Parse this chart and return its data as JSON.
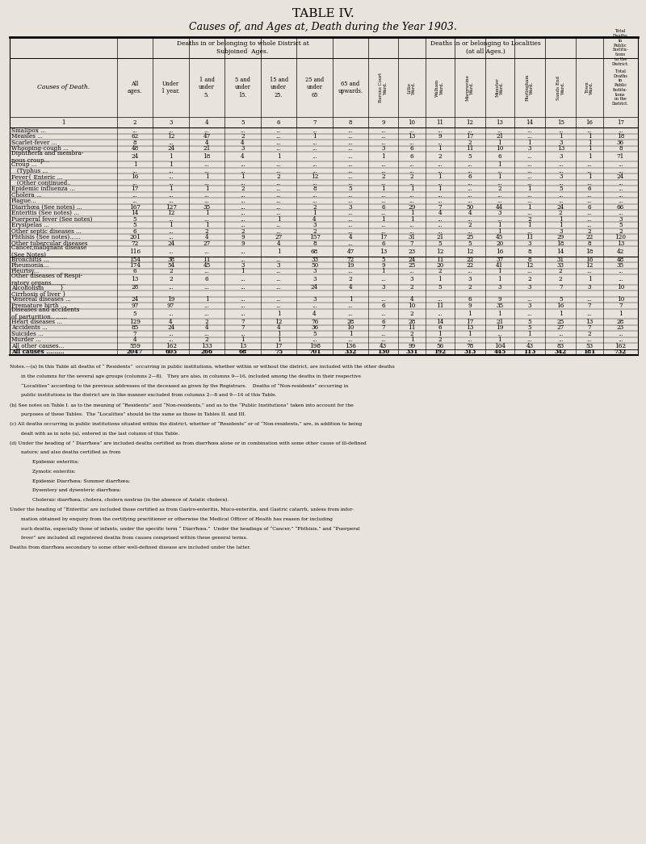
{
  "title": "TABLE IV.",
  "subtitle": "Causes of, and Ages at, Death during the Year 1903.",
  "bg_color": "#e8e4dc",
  "rows": [
    [
      "Smallpox ...",
      "...",
      "...",
      "...",
      "...",
      "...",
      "...",
      "...",
      "...",
      "...",
      "...",
      "...",
      "...",
      "...",
      "...",
      "...",
      "..."
    ],
    [
      "Measles ...",
      "62",
      "12",
      "47",
      "2",
      "...",
      "1",
      "...",
      "...",
      "13",
      "9",
      "17",
      "21",
      "...",
      "1",
      "1",
      "18"
    ],
    [
      "Scarlet-fever ...",
      "8",
      "...",
      "4",
      "4",
      "...",
      "...",
      "...",
      "...",
      "...",
      "...",
      "2",
      "1",
      "1",
      "3",
      "1",
      "36"
    ],
    [
      "Whooping-cough ...",
      "48",
      "24",
      "21",
      "3",
      "...",
      "...",
      "...",
      "3",
      "6",
      "1",
      "11",
      "10",
      "3",
      "13",
      "1",
      "8"
    ],
    [
      "Diphtheria and membra-\nnous croup...",
      "24",
      "1",
      "18",
      "4",
      "1",
      "...",
      "...",
      "1",
      "6",
      "2",
      "5",
      "6",
      "...",
      "3",
      "1",
      "71"
    ],
    [
      "Croup ...",
      "1",
      "1",
      "...",
      "...",
      "...",
      "...",
      "...",
      "...",
      "...",
      "...",
      "...",
      "1",
      "...",
      "...",
      "...",
      "..."
    ],
    [
      "   (Typhus ...",
      "...",
      "...",
      "...",
      "...",
      "...",
      "...",
      "...",
      "...",
      "...",
      "...",
      "...",
      "...",
      "...",
      "...",
      "...",
      "..."
    ],
    [
      "Fever{ Enteric ...",
      "16",
      "...",
      "1",
      "1",
      "2",
      "12",
      "...",
      "2",
      "2",
      "1",
      "6",
      "1",
      "...",
      "3",
      "1",
      "24"
    ],
    [
      "   (Other continued..",
      "...",
      "...",
      "...",
      "...",
      "...",
      "...",
      "...",
      "...",
      "...",
      "...",
      "...",
      "...",
      "...",
      "...",
      "...",
      "..."
    ],
    [
      "Epidemic influenza ...",
      "17",
      "1",
      "1",
      "2",
      "...",
      "8",
      "5",
      "1",
      "1",
      "1",
      "...",
      "2",
      "1",
      "5",
      "6",
      "..."
    ],
    [
      "Cholera ...",
      "...",
      "...",
      "...",
      "...",
      "...",
      "...",
      "...",
      "...",
      "...",
      "...",
      "...",
      "...",
      "...",
      "...",
      "...",
      "..."
    ],
    [
      "Plague...",
      "...",
      "...",
      "...",
      "...",
      "...",
      "...",
      "...",
      "...",
      "...",
      "...",
      "...",
      "...",
      "...",
      "...",
      "...",
      "..."
    ],
    [
      "Diarrhœa (See notes) ...",
      "167",
      "127",
      "35",
      "...",
      "...",
      "2",
      "3",
      "6",
      "29",
      "7",
      "50",
      "44",
      "1",
      "24",
      "6",
      "66"
    ],
    [
      "Enteritis (See notes) ...",
      "14",
      "12",
      "1",
      "...",
      "...",
      "1",
      "...",
      "...",
      "1",
      "4",
      "4",
      "3",
      "...",
      "2",
      "...",
      "..."
    ],
    [
      "Puerperal fever (See notes)",
      "5",
      "...",
      "...",
      "...",
      "1",
      "4",
      "...",
      "1",
      "1",
      "...",
      "...",
      "...",
      "2",
      "1",
      "...",
      "3"
    ],
    [
      "Erysipelas ...",
      "5",
      "1",
      "1",
      "...",
      "...",
      "3",
      "...",
      "...",
      "...",
      "...",
      "2",
      "1",
      "1",
      "1",
      "...",
      "5"
    ],
    [
      "Other septic diseases ...",
      "6",
      "...",
      "2",
      "2",
      "...",
      "2",
      "...",
      "...",
      "...",
      "...",
      "...",
      "1",
      "...",
      "3",
      "2",
      "2"
    ],
    [
      "Phthisis (See notes)......",
      "201",
      "...",
      "4",
      "9",
      "27",
      "157",
      "4",
      "17",
      "31",
      "21",
      "25",
      "45",
      "11",
      "29",
      "22",
      "120"
    ],
    [
      "Other tubercular diseases",
      "72",
      "24",
      "27",
      "9",
      "4",
      "8",
      "...",
      "6",
      "7",
      "5",
      "5",
      "20",
      "3",
      "18",
      "8",
      "13"
    ],
    [
      "Cancer,malignant disease\n(See Notes)",
      "116",
      "...",
      "...",
      "...",
      "1",
      "68",
      "47",
      "13",
      "23",
      "12",
      "12",
      "16",
      "8",
      "14",
      "18",
      "42"
    ],
    [
      "Bronchitis ...",
      "154",
      "38",
      "11",
      "...",
      "...",
      "33",
      "72",
      "5",
      "24",
      "11",
      "22",
      "37",
      "8",
      "31",
      "16",
      "48"
    ],
    [
      "Pheumonia...",
      "174",
      "54",
      "45",
      "3",
      "3",
      "50",
      "19",
      "9",
      "25",
      "20",
      "22",
      "41",
      "12",
      "33",
      "12",
      "35"
    ],
    [
      "Pleurisy...",
      "6",
      "2",
      "...",
      "1",
      "...",
      "3",
      "...",
      "1",
      "...",
      "2",
      "...",
      "1",
      "...",
      "2",
      "...",
      "..."
    ],
    [
      "Other diseases of Respi-\nratory organs........",
      "13",
      "2",
      "6",
      "...",
      "...",
      "3",
      "2",
      "...",
      "3",
      "1",
      "3",
      "1",
      "2",
      "2",
      "1",
      "..."
    ],
    [
      "Alcoholism         }",
      "28",
      "...",
      "...",
      "...",
      "...",
      "24",
      "4",
      "3",
      "2",
      "5",
      "2",
      "3",
      "3",
      "7",
      "3",
      "10"
    ],
    [
      "Cirrhosis of liver }",
      "",
      "",
      "",
      "",
      "",
      "",
      "",
      "",
      "",
      "",
      "",
      "",
      "",
      "",
      "",
      ""
    ],
    [
      "Venereal diseases ...",
      "24",
      "19",
      "1",
      "...",
      "...",
      "3",
      "1",
      "...",
      "4",
      "...",
      "6",
      "9",
      "...",
      "5",
      "...",
      "10"
    ],
    [
      "Premature birth ...",
      "97",
      "97",
      "...",
      "...",
      "...",
      "...",
      "...",
      "6",
      "10",
      "11",
      "9",
      "35",
      "3",
      "16",
      "7",
      "7"
    ],
    [
      "Diseases and accidents\nof parturition.. ......",
      "5",
      "...",
      "...",
      "...",
      "1",
      "4",
      "...",
      "...",
      "2",
      "...",
      "1",
      "1",
      "...",
      "1",
      "...",
      "1"
    ],
    [
      "Heart diseases ...",
      "129",
      "4",
      "2",
      "7",
      "12",
      "76",
      "28",
      "6",
      "28",
      "14",
      "17",
      "21",
      "5",
      "25",
      "13",
      "28"
    ],
    [
      "Accidents ...",
      "85",
      "24",
      "4",
      "7",
      "4",
      "36",
      "10",
      "7",
      "11",
      "6",
      "13",
      "19",
      "5",
      "27",
      "7",
      "23"
    ],
    [
      "Suicides ...",
      "7",
      "...",
      "...",
      "...",
      "1",
      "5",
      "1",
      "...",
      "2",
      "1",
      "1",
      "...",
      "1",
      "...",
      "2",
      "..."
    ],
    [
      "Murder ...",
      "4",
      "...",
      "2",
      "1",
      "1",
      "...",
      "...",
      "...",
      "1",
      "2",
      "...",
      "1",
      "...",
      "...",
      "...",
      "..."
    ],
    [
      "All other causes...",
      "559",
      "162",
      "133",
      "13",
      "17",
      "198",
      "136",
      "43",
      "99",
      "56",
      "78",
      "104",
      "43",
      "83",
      "53",
      "162"
    ],
    [
      "All causes .........",
      "2047",
      "605",
      "266",
      "68",
      "75",
      "701",
      "332",
      "130",
      "331",
      "192",
      "313",
      "445",
      "113",
      "342",
      "181",
      "732"
    ]
  ],
  "notes_lines": [
    {
      "ind": 0,
      "text": "Notes.—(a) In this Table all deaths of “ Residents”  occurring in public institutions, whether within or without the district, are included with the other deaths"
    },
    {
      "ind": 1,
      "text": "in the columns for the several age groups (columns 2—8).   They are also, in columns 9—16, included among the deaths in their respective"
    },
    {
      "ind": 1,
      "text": "“Localities” according to the previous addresses of the deceased as given by the Registrars.    Deaths of “Non-residents” occurring in"
    },
    {
      "ind": 1,
      "text": "public institutions in the district are in like manner excluded from columns 2—8 and 9—16 of this Table."
    },
    {
      "ind": 0,
      "text": "(b) See notes on Table I. as to the meaning of “Residents” and “Non-residents,” and as to the “Public Institutions” taken into account for the"
    },
    {
      "ind": 1,
      "text": "purposes of these Tables.  The “Localities” should be the same as those in Tables II. and III."
    },
    {
      "ind": 0,
      "text": "(c) All deaths occurring in public institutions situated within the district, whether of “Residents” or of “Non-residents,” are, in addition to being"
    },
    {
      "ind": 1,
      "text": "dealt with as in note (a), entered in the last column of this Table."
    },
    {
      "ind": 0,
      "text": "(d) Under the heading of “ Diarrħœa” are included deaths certified as from diarrħœa alone or in combination with some other cause of ill-defined"
    },
    {
      "ind": 1,
      "text": "nature; and also deaths certified as from"
    },
    {
      "ind": 2,
      "text": "Epidemic enteritis;"
    },
    {
      "ind": 2,
      "text": "Zymotic enteritis;"
    },
    {
      "ind": 2,
      "text": "Epidemic Diarrħœa; Summer diarrħœa;"
    },
    {
      "ind": 2,
      "text": "Dysentery and dysenteric diarrħœa;"
    },
    {
      "ind": 2,
      "text": "Choleraic diarrħœa, cholera, cholera nostras (in the absence of Asiatic cholera)."
    },
    {
      "ind": 0,
      "text": "Under the heading of “Enteritis’ are included those certified as from Gastro-enteritis, Muco-enteritis, and Gastric catarrh, unless from infor-"
    },
    {
      "ind": 1,
      "text": "mation obtained by enquiry from the certifying practitioner or otherwise the Medical Officer of Health has reason for including"
    },
    {
      "ind": 1,
      "text": "such deaths, especially those of infants, under the specific term “ Diarrħœa.”  Under the headings of “Cancer,” “Phthisis,” and “Puerperal"
    },
    {
      "ind": 1,
      "text": "fever” are included all registered deaths from causes comprised within these general terms."
    },
    {
      "ind": 0,
      "text": "Deaths from diarrħœa secondary to some other well-defined disease are included under the latter."
    }
  ]
}
